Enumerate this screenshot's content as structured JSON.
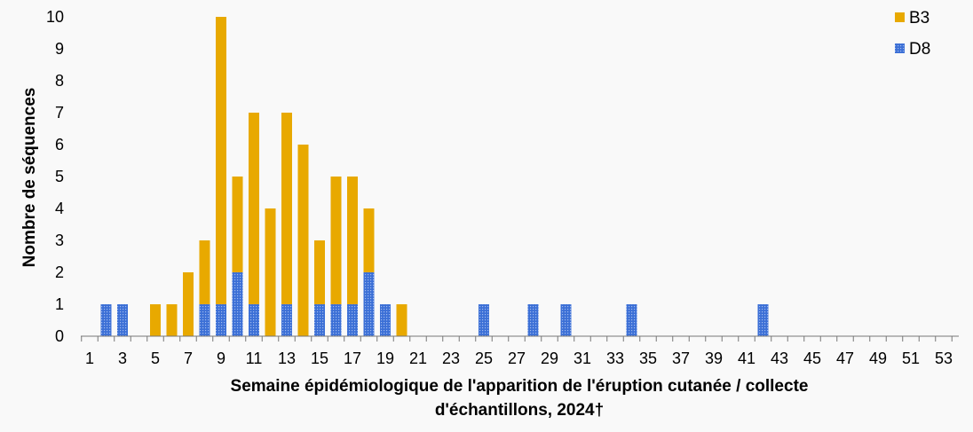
{
  "chart_data": {
    "type": "bar",
    "stacked": true,
    "xlabel_line1": "Semaine épidémiologique de l'apparition de l'éruption cutanée / collecte",
    "xlabel_line2": "d'échantillons, 2024†",
    "ylabel": "Nombre de séquences",
    "ylim": [
      0,
      10
    ],
    "yticks": [
      0,
      1,
      2,
      3,
      4,
      5,
      6,
      7,
      8,
      9,
      10
    ],
    "x": [
      1,
      2,
      3,
      4,
      5,
      6,
      7,
      8,
      9,
      10,
      11,
      12,
      13,
      14,
      15,
      16,
      17,
      18,
      19,
      20,
      21,
      22,
      23,
      24,
      25,
      26,
      27,
      28,
      29,
      30,
      31,
      32,
      33,
      34,
      35,
      36,
      37,
      38,
      39,
      40,
      41,
      42,
      43,
      44,
      45,
      46,
      47,
      48,
      49,
      50,
      51,
      52,
      53
    ],
    "xticks": [
      1,
      3,
      5,
      7,
      9,
      11,
      13,
      15,
      17,
      19,
      21,
      23,
      25,
      27,
      29,
      31,
      33,
      35,
      37,
      39,
      41,
      43,
      45,
      47,
      49,
      51,
      53
    ],
    "legend_position": "top-right",
    "grid": false,
    "series": [
      {
        "name": "D8",
        "color": "#3b6fd6",
        "pattern": "dotted",
        "values": [
          0,
          1,
          1,
          0,
          0,
          0,
          0,
          1,
          1,
          2,
          1,
          0,
          1,
          0,
          1,
          1,
          1,
          2,
          1,
          0,
          0,
          0,
          0,
          0,
          1,
          0,
          0,
          1,
          0,
          1,
          0,
          0,
          0,
          1,
          0,
          0,
          0,
          0,
          0,
          0,
          0,
          1,
          0,
          0,
          0,
          0,
          0,
          0,
          0,
          0,
          0,
          0,
          0
        ]
      },
      {
        "name": "B3",
        "color": "#e8a900",
        "values": [
          0,
          0,
          0,
          0,
          1,
          1,
          2,
          2,
          9,
          3,
          6,
          4,
          6,
          6,
          2,
          4,
          4,
          2,
          0,
          1,
          0,
          0,
          0,
          0,
          0,
          0,
          0,
          0,
          0,
          0,
          0,
          0,
          0,
          0,
          0,
          0,
          0,
          0,
          0,
          0,
          0,
          0,
          0,
          0,
          0,
          0,
          0,
          0,
          0,
          0,
          0,
          0,
          0
        ]
      }
    ],
    "legend_order": [
      "B3",
      "D8"
    ]
  }
}
